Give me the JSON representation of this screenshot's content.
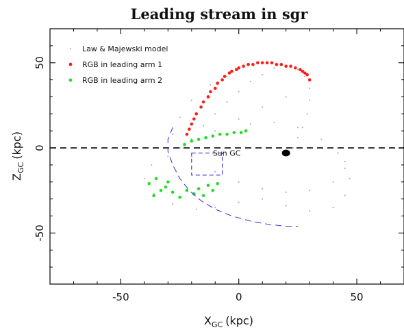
{
  "chart_data": {
    "type": "scatter",
    "title": "Leading stream in sgr",
    "xlabel": {
      "main": "X",
      "sub": "GC",
      "unit": "(kpc)"
    },
    "ylabel": {
      "main": "Z",
      "sub": "GC",
      "unit": "(kpc)"
    },
    "xlim": [
      -80,
      70
    ],
    "ylim": [
      -80,
      70
    ],
    "xticks": [
      -50,
      0,
      50
    ],
    "yticks": [
      -50,
      0,
      50
    ],
    "grid": false,
    "legend_position": "top-left",
    "series": [
      {
        "name": "Law & Majewski model",
        "color": "#9a9a9a",
        "marker": "dot"
      },
      {
        "name": "RGB in leading arm 1",
        "color": "#ff1a1a",
        "marker": "dot"
      },
      {
        "name": "RGB in leading arm 2",
        "color": "#22dd22",
        "marker": "dot"
      }
    ],
    "model_stream": [
      [
        -25,
        0
      ],
      [
        -20,
        5
      ],
      [
        -15,
        13
      ],
      [
        -10,
        20
      ],
      [
        -5,
        27
      ],
      [
        0,
        33
      ],
      [
        5,
        39
      ],
      [
        10,
        43
      ],
      [
        15,
        47
      ],
      [
        20,
        48
      ],
      [
        25,
        46
      ],
      [
        28,
        42
      ],
      [
        30,
        35
      ],
      [
        30,
        28
      ],
      [
        29,
        20
      ],
      [
        27,
        12
      ],
      [
        25,
        6
      ],
      [
        23,
        0
      ],
      [
        -28,
        8
      ],
      [
        -25,
        18
      ],
      [
        -20,
        28
      ],
      [
        -12,
        37
      ],
      [
        -5,
        42
      ],
      [
        20,
        30
      ],
      [
        10,
        24
      ],
      [
        0,
        17
      ],
      [
        -10,
        10
      ],
      [
        -20,
        5
      ],
      [
        -20,
        -5
      ],
      [
        -10,
        -14
      ],
      [
        0,
        -20
      ],
      [
        10,
        -24
      ],
      [
        20,
        -26
      ],
      [
        30,
        -25
      ],
      [
        40,
        -20
      ],
      [
        45,
        -12
      ],
      [
        42,
        -3
      ],
      [
        35,
        5
      ],
      [
        25,
        12
      ],
      [
        15,
        15
      ],
      [
        5,
        14
      ],
      [
        -30,
        -5
      ],
      [
        -37,
        -10
      ],
      [
        -40,
        -18
      ],
      [
        -36,
        -27
      ],
      [
        -28,
        -33
      ],
      [
        -18,
        -36
      ],
      [
        -10,
        -35
      ],
      [
        0,
        -32
      ],
      [
        10,
        -30
      ],
      [
        20,
        -34
      ],
      [
        30,
        -37
      ],
      [
        40,
        -35
      ],
      [
        45,
        -28
      ],
      [
        47,
        -18
      ],
      [
        45,
        -8
      ]
    ],
    "rgb_arm1": [
      [
        -22,
        8
      ],
      [
        -20,
        14
      ],
      [
        -18,
        20
      ],
      [
        -15,
        27
      ],
      [
        -12,
        33
      ],
      [
        -9,
        38
      ],
      [
        -6,
        42
      ],
      [
        -3,
        45
      ],
      [
        0,
        47
      ],
      [
        4,
        49
      ],
      [
        8,
        50
      ],
      [
        12,
        50
      ],
      [
        16,
        49
      ],
      [
        20,
        48
      ],
      [
        24,
        47
      ],
      [
        27,
        45
      ],
      [
        29,
        43
      ],
      [
        30,
        40
      ],
      [
        -21,
        11
      ],
      [
        -19,
        17
      ],
      [
        -16,
        24
      ],
      [
        -13,
        30
      ],
      [
        -10,
        35
      ],
      [
        -7,
        40
      ],
      [
        -4,
        44
      ],
      [
        -1,
        46
      ],
      [
        2,
        48
      ],
      [
        6,
        49
      ],
      [
        10,
        50
      ],
      [
        14,
        50
      ],
      [
        18,
        49
      ],
      [
        22,
        48
      ],
      [
        26,
        46
      ],
      [
        28,
        44
      ]
    ],
    "rgb_arm2": [
      [
        -23,
        2
      ],
      [
        -20,
        4
      ],
      [
        -17,
        5
      ],
      [
        -14,
        6
      ],
      [
        -11,
        7
      ],
      [
        -8,
        8
      ],
      [
        -5,
        8
      ],
      [
        -2,
        9
      ],
      [
        1,
        9
      ],
      [
        3,
        10
      ],
      [
        -30,
        -20
      ],
      [
        -33,
        -25
      ],
      [
        -36,
        -28
      ],
      [
        -31,
        -23
      ],
      [
        -28,
        -26
      ],
      [
        -25,
        -29
      ],
      [
        -22,
        -25
      ],
      [
        -19,
        -27
      ],
      [
        -17,
        -24
      ],
      [
        -15,
        -28
      ],
      [
        -13,
        -22
      ],
      [
        -11,
        -25
      ],
      [
        -9,
        -21
      ],
      [
        -38,
        -21
      ],
      [
        -35,
        -18
      ]
    ],
    "dashed_orbit": [
      [
        -28,
        12
      ],
      [
        -30,
        5
      ],
      [
        -30,
        -2
      ],
      [
        -28,
        -10
      ],
      [
        -25,
        -18
      ],
      [
        -21,
        -25
      ],
      [
        -16,
        -31
      ],
      [
        -10,
        -36
      ],
      [
        -3,
        -40
      ],
      [
        5,
        -43
      ],
      [
        13,
        -45
      ],
      [
        20,
        -46
      ],
      [
        25,
        -46
      ]
    ],
    "sun_box": {
      "x": [
        -20,
        -7
      ],
      "y": [
        -16,
        -3
      ]
    },
    "sgr_core": {
      "x": 20,
      "y": -3
    },
    "hline_y": 0,
    "annotations": [
      {
        "text": "Sun GC",
        "x": -11,
        "y": -3
      }
    ]
  }
}
